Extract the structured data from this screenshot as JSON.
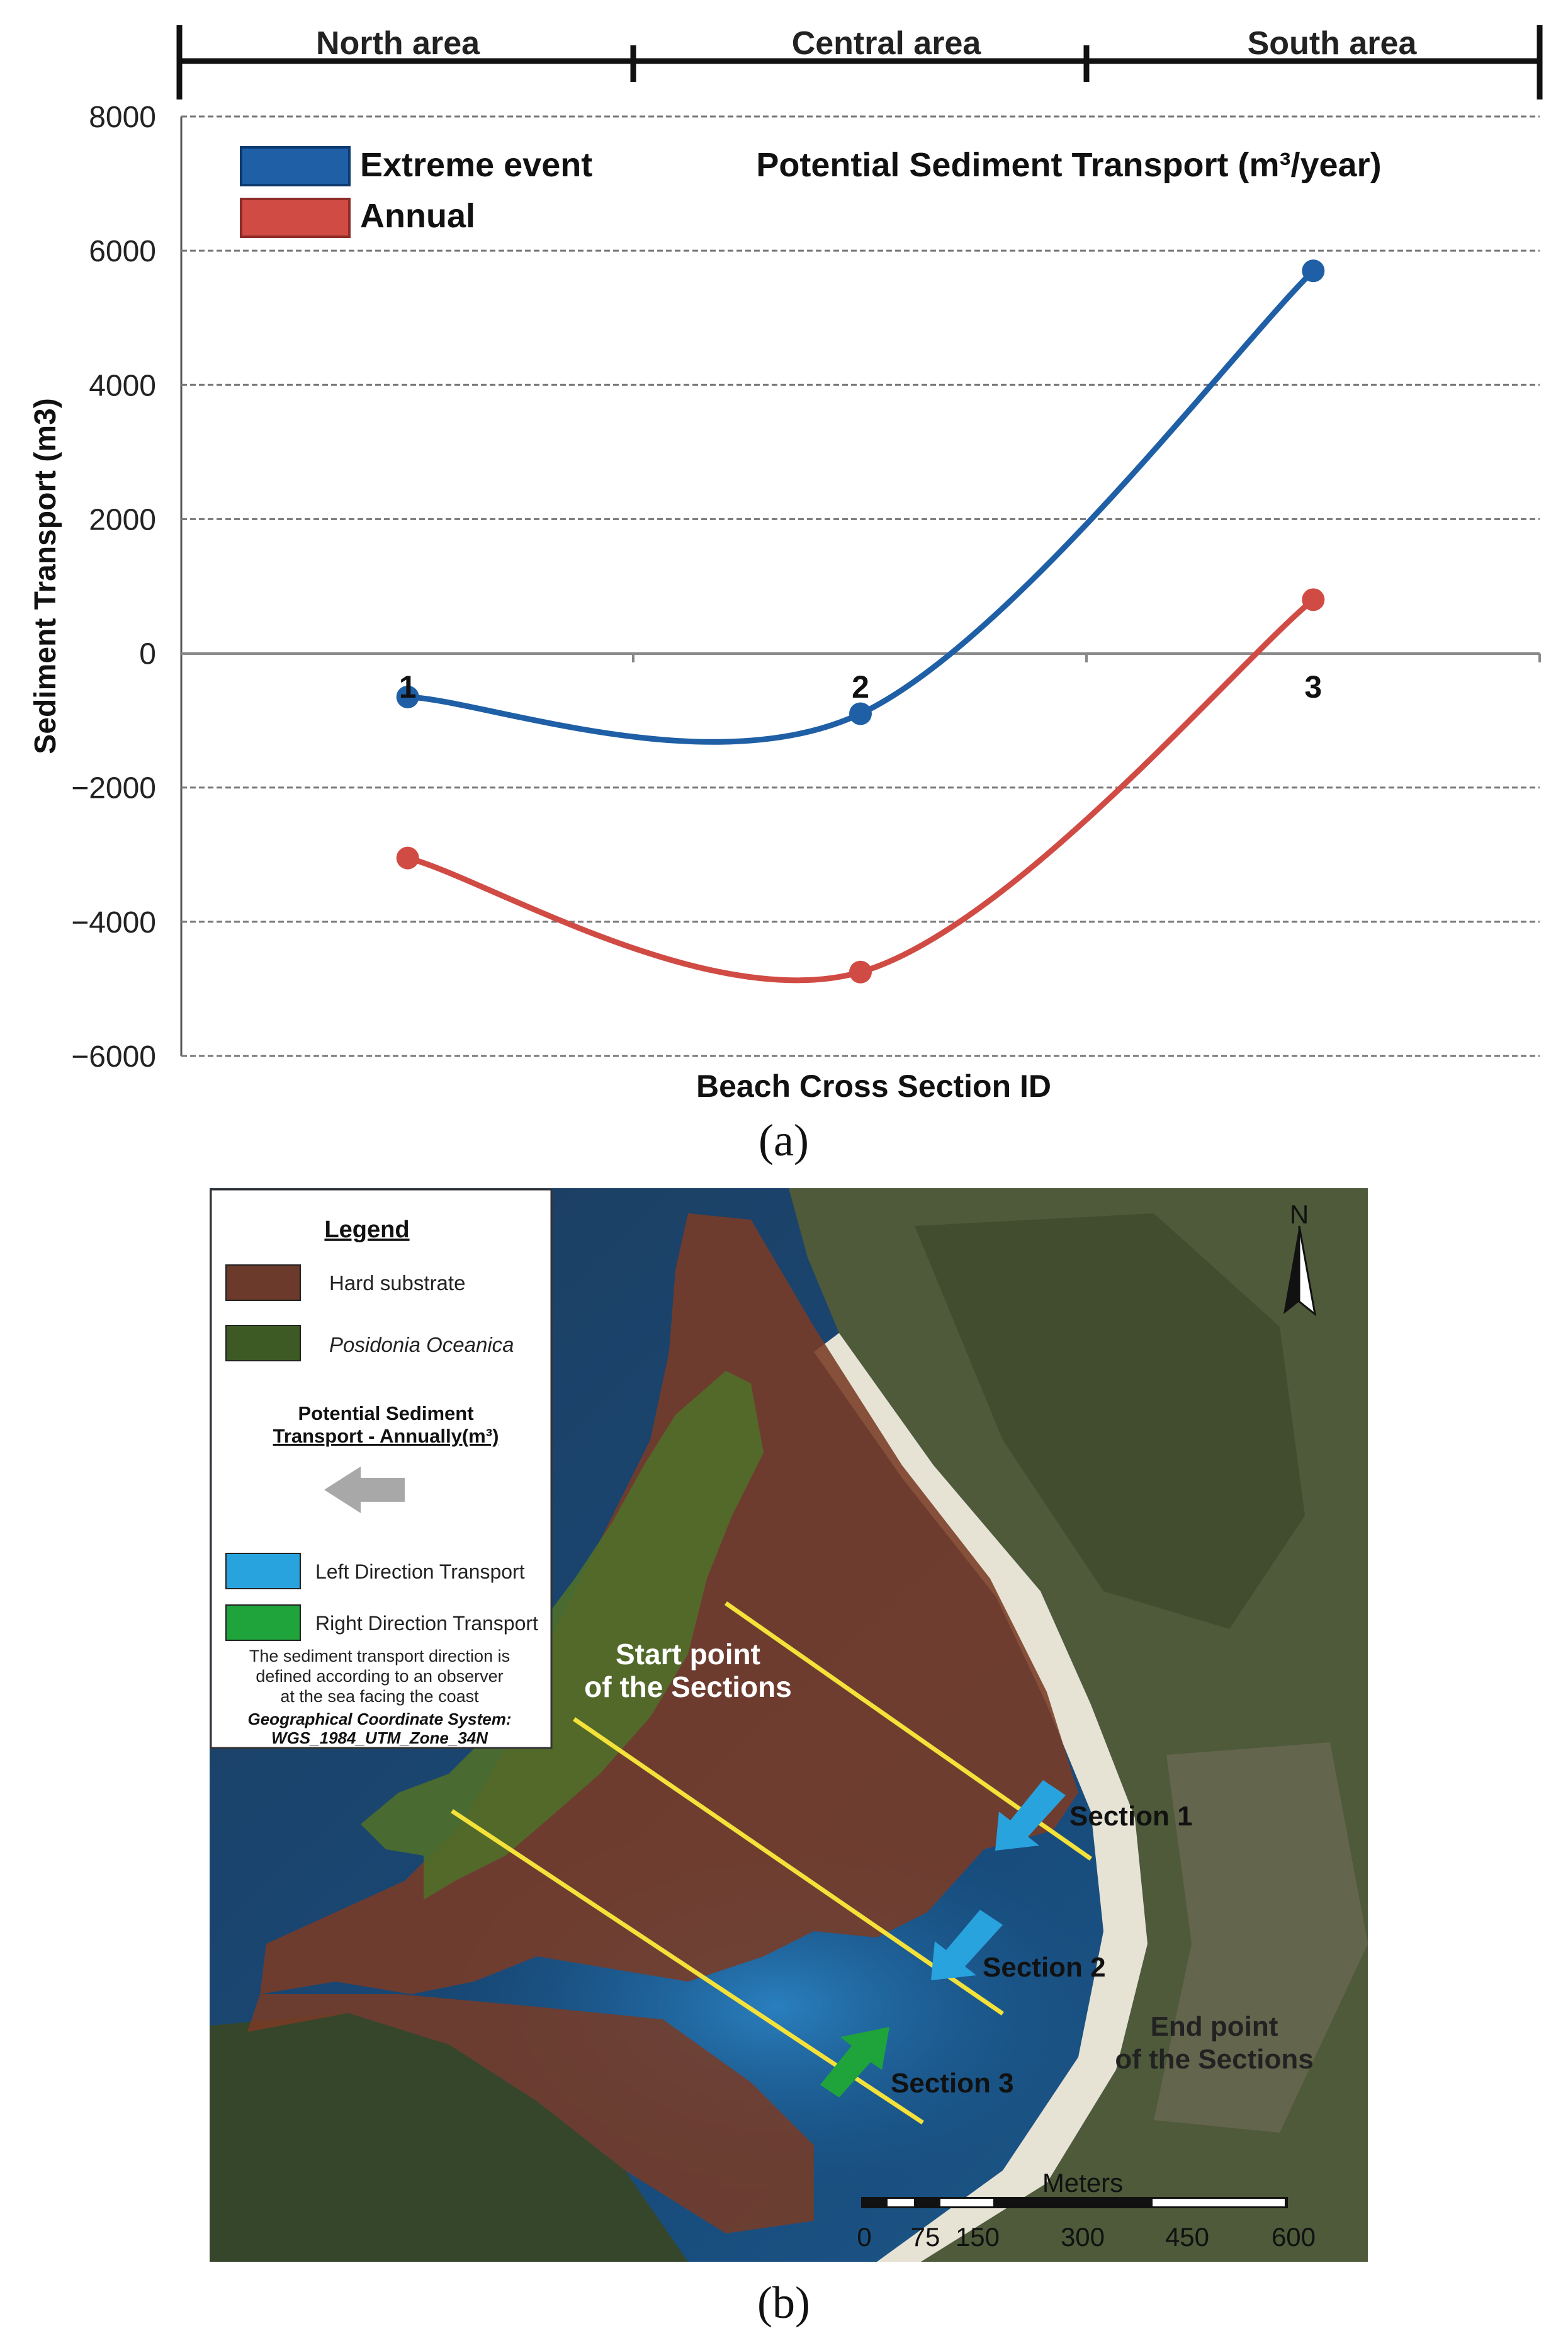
{
  "panel_a": {
    "caption": "(a)",
    "areas": [
      "North area",
      "Central area",
      "South area"
    ],
    "legend": [
      {
        "label": "Extreme event",
        "color": "#1f5fa6"
      },
      {
        "label": "Annual",
        "color": "#d14b45"
      }
    ],
    "title": "Potential Sediment Transport (m³/year)",
    "ylabel": "Sediment Transport (m3)",
    "xlabel": "Beach Cross Section ID"
  },
  "chart_data": {
    "type": "line",
    "x": [
      1,
      2,
      3
    ],
    "categories": [
      "1",
      "2",
      "3"
    ],
    "series": [
      {
        "name": "Extreme event",
        "values": [
          -650,
          -900,
          5700
        ],
        "color": "#1f5fa6"
      },
      {
        "name": "Annual",
        "values": [
          -3050,
          -4750,
          800
        ],
        "color": "#d14b45"
      }
    ],
    "title": "Potential Sediment Transport (m³/year)",
    "xlabel": "Beach Cross Section ID",
    "ylabel": "Sediment Transport (m3)",
    "ylim": [
      -6000,
      8000
    ],
    "yticks": [
      8000,
      6000,
      4000,
      2000,
      0,
      -2000,
      -4000,
      -6000
    ],
    "ytick_labels": [
      "8000",
      "6000",
      "4000",
      "2000",
      "0",
      "−2000",
      "−4000",
      "−6000"
    ],
    "grid": true,
    "legend_position": "top-left"
  },
  "panel_b": {
    "caption": "(b)",
    "legend": {
      "title": "Legend",
      "hard_substrate": "Hard substrate",
      "posidonia": "Posidonia Oceanica",
      "pst_title_1": "Potential Sediment",
      "pst_title_2": "Transport - Annually(m³)",
      "left_transport": "Left Direction Transport",
      "right_transport": "Right Direction Transport",
      "note_1": "The sediment transport direction is",
      "note_2": "defined according to an observer",
      "note_3": "at the sea facing the coast",
      "gcs_1": "Geographical Coordinate System:",
      "gcs_2": "WGS_1984_UTM_Zone_34N",
      "colors": {
        "hard_substrate": "#6b3a2a",
        "posidonia": "#3d5a24",
        "left": "#29a3dd",
        "right": "#1fa43c",
        "arrow_gray": "#a8a8a8"
      }
    },
    "labels": {
      "start_1": "Start point",
      "start_2": "of the Sections",
      "section_1": "Section 1",
      "section_2": "Section 2",
      "section_3": "Section 3",
      "end_1": "End point",
      "end_2": "of the Sections",
      "north": "N"
    },
    "scale": {
      "unit": "Meters",
      "ticks": [
        "0",
        "75",
        "150",
        "300",
        "450",
        "600"
      ]
    }
  }
}
